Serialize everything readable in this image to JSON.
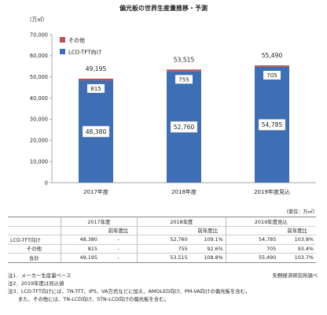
{
  "chart_data": {
    "type": "bar",
    "stacked": true,
    "title": "偏光板の世界生産量推移・予測",
    "ylabel": "（万㎡）",
    "categories": [
      "2017年度",
      "2018年度",
      "2019年度見込"
    ],
    "ylim": [
      0,
      70000
    ],
    "yticks": [
      "0",
      "10,000",
      "20,000",
      "30,000",
      "40,000",
      "50,000",
      "60,000",
      "70,000"
    ],
    "series": [
      {
        "name": "LCD-TFT向け",
        "values": [
          48380,
          52760,
          54785
        ],
        "labels": [
          "48,380",
          "52,760",
          "54,785"
        ],
        "color": "#3e6eb4"
      },
      {
        "name": "その他",
        "values": [
          815,
          755,
          705
        ],
        "labels": [
          "815",
          "755",
          "705"
        ],
        "color": "#c0504d"
      }
    ],
    "totals": [
      "49,195",
      "53,515",
      "55,490"
    ],
    "legend": [
      "その他",
      "LCD-TFT向け"
    ],
    "legend_position": "top-left",
    "grid": false
  },
  "table": {
    "unit": "（単位：万㎡）",
    "years": [
      "2017年度",
      "2018年度",
      "2019年度見込"
    ],
    "yoy_label": "前年度比",
    "rows": [
      {
        "label": "LCD-TFT向け",
        "cells": [
          "48,380",
          "-",
          "52,760",
          "109.1%",
          "54,785",
          "103.8%"
        ]
      },
      {
        "label": "その他",
        "cells": [
          "815",
          "-",
          "755",
          "92.6%",
          "705",
          "93.4%"
        ]
      },
      {
        "label": "合計",
        "cells": [
          "49,195",
          "-",
          "53,515",
          "108.8%",
          "55,490",
          "103.7%"
        ]
      }
    ]
  },
  "notes": {
    "n1": "注1．メーカー生産量ベース",
    "n2": "注2．2019年度は見込値",
    "n3": "注3．LCD-TFT向けには、TN-TFT、IPS、VA方式などに加え、AMOLED向け、PM-VA向けの偏光板を含む。",
    "n4": "　　また、その他には、TN-LCD向け、STN-LCD向けの偏光板を含む。",
    "source": "矢野経済研究所調べ"
  }
}
